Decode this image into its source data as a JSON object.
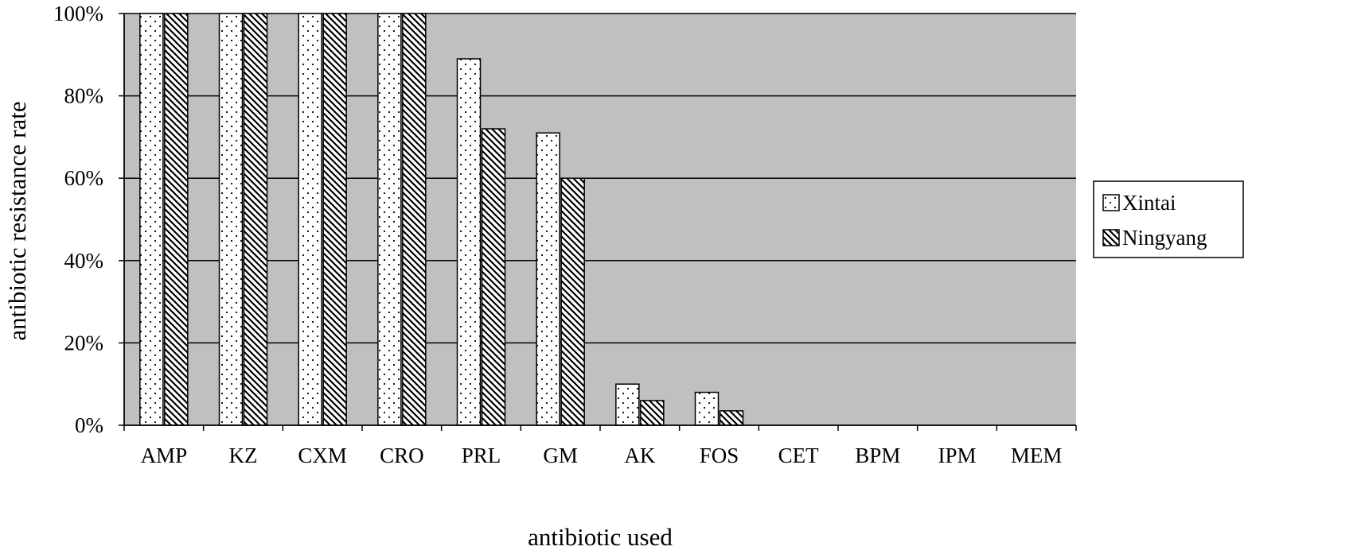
{
  "chart_data": {
    "type": "bar",
    "title": "",
    "xlabel": "antibiotic used",
    "ylabel": "antibiotic resistance rate",
    "categories": [
      "AMP",
      "KZ",
      "CXM",
      "CRO",
      "PRL",
      "GM",
      "AK",
      "FOS",
      "CET",
      "BPM",
      "IPM",
      "MEM"
    ],
    "series": [
      {
        "name": "Xintai",
        "values": [
          100,
          100,
          100,
          100,
          89,
          71,
          10,
          8,
          0,
          0,
          0,
          0
        ],
        "pattern": "dots"
      },
      {
        "name": "Ningyang",
        "values": [
          100,
          100,
          100,
          100,
          72,
          60,
          6,
          3.5,
          0,
          0,
          0,
          0
        ],
        "pattern": "diagonal-hatch"
      }
    ],
    "ylim": [
      0,
      100
    ],
    "yticks": [
      "0%",
      "20%",
      "40%",
      "60%",
      "80%",
      "100%"
    ],
    "grid": true,
    "legend_position": "right",
    "colors": {
      "plot_background": "#c0c0c0",
      "bar_fill": "#ffffff",
      "bar_stroke": "#000000"
    }
  }
}
